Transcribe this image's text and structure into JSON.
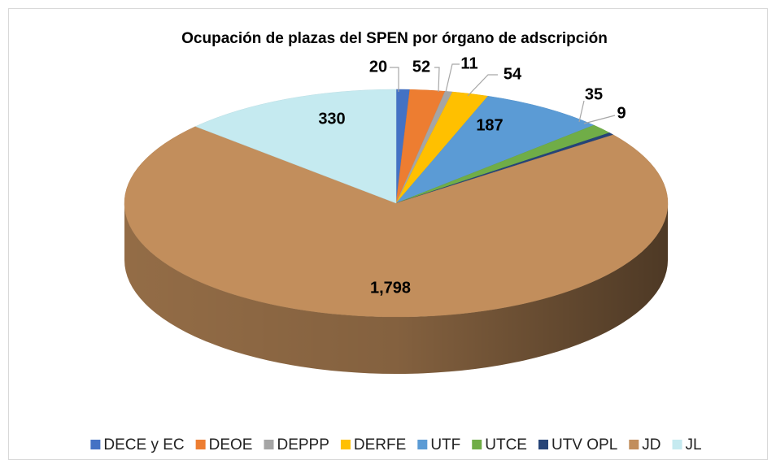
{
  "chart_data": {
    "type": "pie",
    "title": "Ocupación de plazas del SPEN por órgano de adscripción",
    "categories": [
      "DECE y EC",
      "DEOE",
      "DEPPP",
      "DERFE",
      "UTF",
      "UTCE",
      "UTV OPL",
      "JD",
      "JL"
    ],
    "values": [
      20,
      52,
      11,
      54,
      187,
      35,
      9,
      1798,
      330
    ],
    "value_labels": [
      "20",
      "52",
      "11",
      "54",
      "187",
      "35",
      "9",
      "1,798",
      "330"
    ],
    "colors": [
      "#4472c4",
      "#ed7d31",
      "#a5a5a5",
      "#ffc000",
      "#5b9bd5",
      "#70ad47",
      "#264478",
      "#c28e5c",
      "#c5eaf0"
    ],
    "legend": "bottom"
  }
}
